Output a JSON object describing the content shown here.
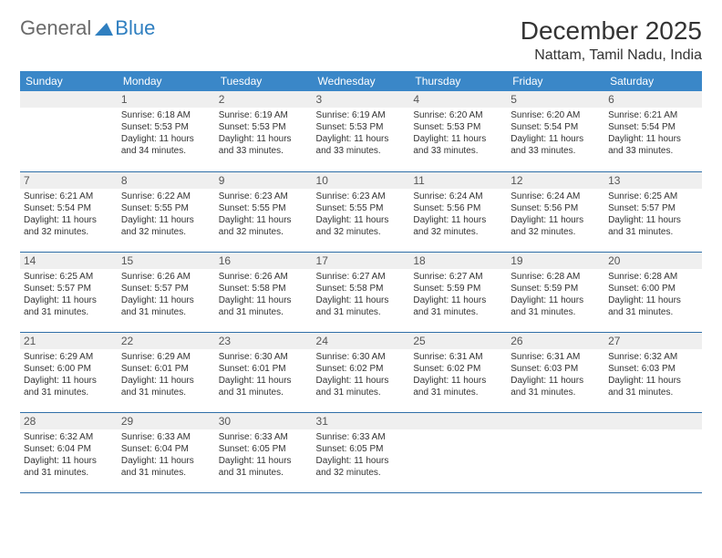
{
  "logo": {
    "text1": "General",
    "text2": "Blue",
    "accent": "#2f7fc0",
    "gray": "#6a6a6a"
  },
  "header": {
    "month": "December 2025",
    "location": "Nattam, Tamil Nadu, India"
  },
  "colors": {
    "header_bg": "#3a87c8",
    "header_text": "#ffffff",
    "daynum_bg": "#efefef",
    "row_divider": "#2f6fa8",
    "body_text": "#333333",
    "page_bg": "#ffffff"
  },
  "typography": {
    "month_fontsize": 28,
    "location_fontsize": 16,
    "dayhdr_fontsize": 12,
    "info_fontsize": 10
  },
  "day_names": [
    "Sunday",
    "Monday",
    "Tuesday",
    "Wednesday",
    "Thursday",
    "Friday",
    "Saturday"
  ],
  "weeks": [
    [
      {
        "blank": true
      },
      {
        "n": "1",
        "sunrise": "6:18 AM",
        "sunset": "5:53 PM",
        "daylight": "11 hours and 34 minutes."
      },
      {
        "n": "2",
        "sunrise": "6:19 AM",
        "sunset": "5:53 PM",
        "daylight": "11 hours and 33 minutes."
      },
      {
        "n": "3",
        "sunrise": "6:19 AM",
        "sunset": "5:53 PM",
        "daylight": "11 hours and 33 minutes."
      },
      {
        "n": "4",
        "sunrise": "6:20 AM",
        "sunset": "5:53 PM",
        "daylight": "11 hours and 33 minutes."
      },
      {
        "n": "5",
        "sunrise": "6:20 AM",
        "sunset": "5:54 PM",
        "daylight": "11 hours and 33 minutes."
      },
      {
        "n": "6",
        "sunrise": "6:21 AM",
        "sunset": "5:54 PM",
        "daylight": "11 hours and 33 minutes."
      }
    ],
    [
      {
        "n": "7",
        "sunrise": "6:21 AM",
        "sunset": "5:54 PM",
        "daylight": "11 hours and 32 minutes."
      },
      {
        "n": "8",
        "sunrise": "6:22 AM",
        "sunset": "5:55 PM",
        "daylight": "11 hours and 32 minutes."
      },
      {
        "n": "9",
        "sunrise": "6:23 AM",
        "sunset": "5:55 PM",
        "daylight": "11 hours and 32 minutes."
      },
      {
        "n": "10",
        "sunrise": "6:23 AM",
        "sunset": "5:55 PM",
        "daylight": "11 hours and 32 minutes."
      },
      {
        "n": "11",
        "sunrise": "6:24 AM",
        "sunset": "5:56 PM",
        "daylight": "11 hours and 32 minutes."
      },
      {
        "n": "12",
        "sunrise": "6:24 AM",
        "sunset": "5:56 PM",
        "daylight": "11 hours and 32 minutes."
      },
      {
        "n": "13",
        "sunrise": "6:25 AM",
        "sunset": "5:57 PM",
        "daylight": "11 hours and 31 minutes."
      }
    ],
    [
      {
        "n": "14",
        "sunrise": "6:25 AM",
        "sunset": "5:57 PM",
        "daylight": "11 hours and 31 minutes."
      },
      {
        "n": "15",
        "sunrise": "6:26 AM",
        "sunset": "5:57 PM",
        "daylight": "11 hours and 31 minutes."
      },
      {
        "n": "16",
        "sunrise": "6:26 AM",
        "sunset": "5:58 PM",
        "daylight": "11 hours and 31 minutes."
      },
      {
        "n": "17",
        "sunrise": "6:27 AM",
        "sunset": "5:58 PM",
        "daylight": "11 hours and 31 minutes."
      },
      {
        "n": "18",
        "sunrise": "6:27 AM",
        "sunset": "5:59 PM",
        "daylight": "11 hours and 31 minutes."
      },
      {
        "n": "19",
        "sunrise": "6:28 AM",
        "sunset": "5:59 PM",
        "daylight": "11 hours and 31 minutes."
      },
      {
        "n": "20",
        "sunrise": "6:28 AM",
        "sunset": "6:00 PM",
        "daylight": "11 hours and 31 minutes."
      }
    ],
    [
      {
        "n": "21",
        "sunrise": "6:29 AM",
        "sunset": "6:00 PM",
        "daylight": "11 hours and 31 minutes."
      },
      {
        "n": "22",
        "sunrise": "6:29 AM",
        "sunset": "6:01 PM",
        "daylight": "11 hours and 31 minutes."
      },
      {
        "n": "23",
        "sunrise": "6:30 AM",
        "sunset": "6:01 PM",
        "daylight": "11 hours and 31 minutes."
      },
      {
        "n": "24",
        "sunrise": "6:30 AM",
        "sunset": "6:02 PM",
        "daylight": "11 hours and 31 minutes."
      },
      {
        "n": "25",
        "sunrise": "6:31 AM",
        "sunset": "6:02 PM",
        "daylight": "11 hours and 31 minutes."
      },
      {
        "n": "26",
        "sunrise": "6:31 AM",
        "sunset": "6:03 PM",
        "daylight": "11 hours and 31 minutes."
      },
      {
        "n": "27",
        "sunrise": "6:32 AM",
        "sunset": "6:03 PM",
        "daylight": "11 hours and 31 minutes."
      }
    ],
    [
      {
        "n": "28",
        "sunrise": "6:32 AM",
        "sunset": "6:04 PM",
        "daylight": "11 hours and 31 minutes."
      },
      {
        "n": "29",
        "sunrise": "6:33 AM",
        "sunset": "6:04 PM",
        "daylight": "11 hours and 31 minutes."
      },
      {
        "n": "30",
        "sunrise": "6:33 AM",
        "sunset": "6:05 PM",
        "daylight": "11 hours and 31 minutes."
      },
      {
        "n": "31",
        "sunrise": "6:33 AM",
        "sunset": "6:05 PM",
        "daylight": "11 hours and 32 minutes."
      },
      {
        "blank": true
      },
      {
        "blank": true
      },
      {
        "blank": true
      }
    ]
  ],
  "labels": {
    "sunrise": "Sunrise:",
    "sunset": "Sunset:",
    "daylight": "Daylight:"
  }
}
